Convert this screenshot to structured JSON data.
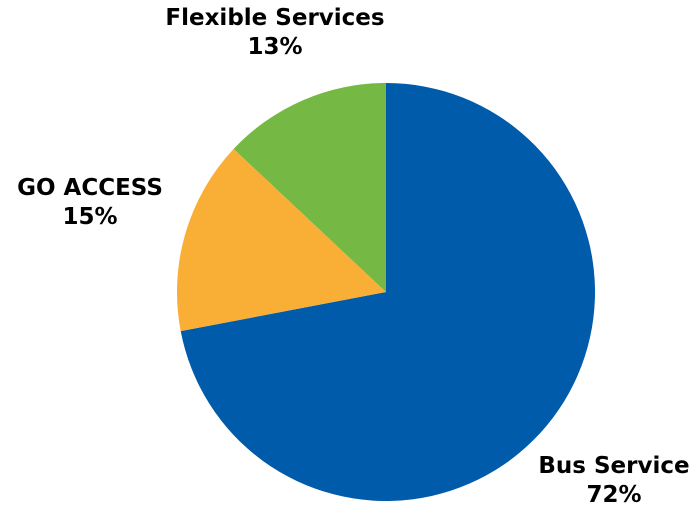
{
  "chart_data": {
    "type": "pie",
    "title": "",
    "slices": [
      {
        "label": "Bus Service",
        "value": 72,
        "percent_label": "72%",
        "color": "#005BAA"
      },
      {
        "label": "GO ACCESS",
        "value": 15,
        "percent_label": "15%",
        "color": "#F9AE36"
      },
      {
        "label": "Flexible Services",
        "value": 13,
        "percent_label": "13%",
        "color": "#75B843"
      }
    ],
    "start": "12 o'clock",
    "direction": "clockwise",
    "legend": "none"
  }
}
